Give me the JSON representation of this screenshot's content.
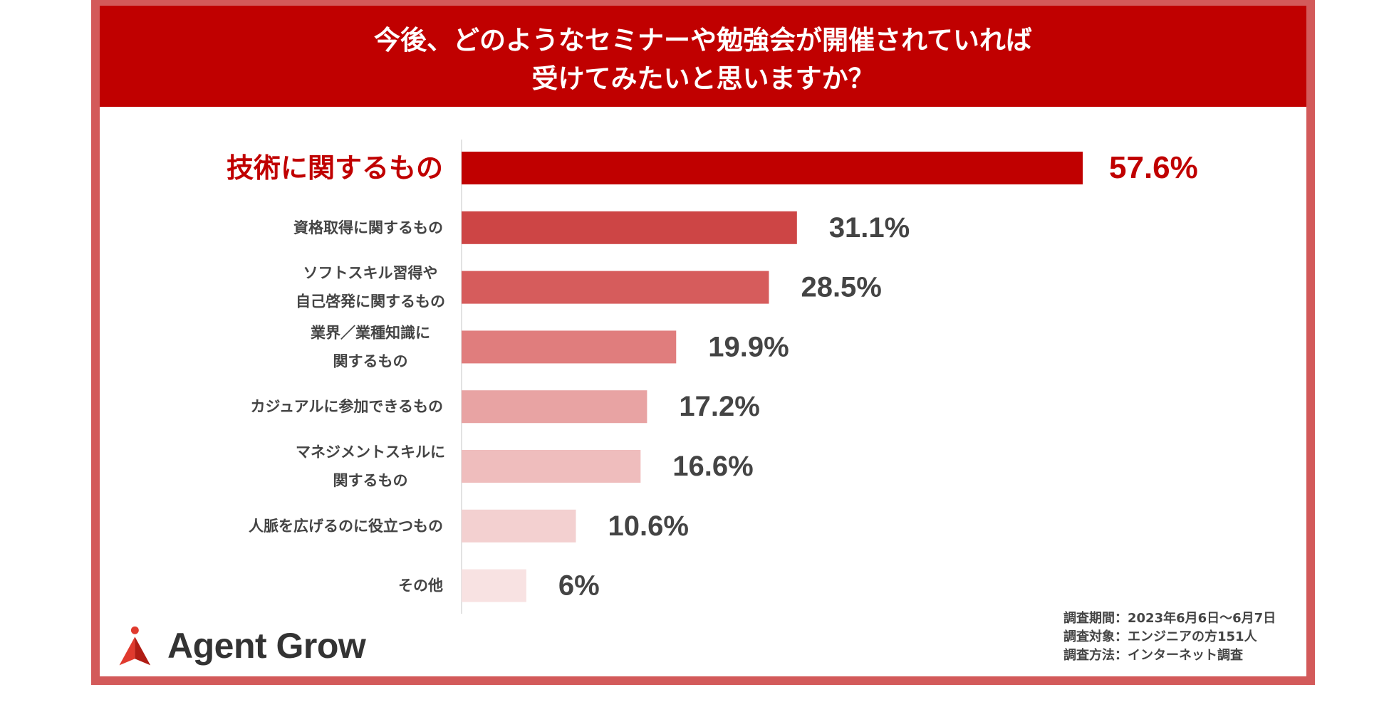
{
  "title_line1": "今後、どのようなセミナーや勉強会が開催されていれば",
  "title_line2": "受けてみたいと思いますか？",
  "chart_data": {
    "type": "bar",
    "orientation": "horizontal",
    "title": "今後、どのようなセミナーや勉強会が開催されていれば受けてみたいと思いますか？",
    "categories": [
      [
        "技術に関するもの"
      ],
      [
        "資格取得に関するもの"
      ],
      [
        "ソフトスキル習得や",
        "自己啓発に関するもの"
      ],
      [
        "業界／業種知識に",
        "関するもの"
      ],
      [
        "カジュアルに参加できるもの"
      ],
      [
        "マネジメントスキルに",
        "関するもの"
      ],
      [
        "人脈を広げるのに役立つもの"
      ],
      [
        "その他"
      ]
    ],
    "values": [
      57.6,
      31.1,
      28.5,
      19.9,
      17.2,
      16.6,
      10.6,
      6
    ],
    "value_labels": [
      "57.6%",
      "31.1%",
      "28.5%",
      "19.9%",
      "17.2%",
      "16.6%",
      "10.6%",
      "6%"
    ],
    "colors": [
      "#c00000",
      "#cd4545",
      "#d65c5c",
      "#e07d7d",
      "#e8a3a3",
      "#efbdbd",
      "#f3d0d0",
      "#f8e2e2"
    ],
    "highlight_index": 0,
    "highlight_color": "#c00000",
    "label_color": "#444444",
    "xlim": [
      0,
      57.6
    ]
  },
  "footnote": [
    "調査期間：2023年6月6日〜6月7日",
    "調査対象：エンジニアの方151人",
    "調査方法：インターネット調査"
  ],
  "logo_text": "Agent Grow",
  "logo_icon": "person-triangle-icon"
}
